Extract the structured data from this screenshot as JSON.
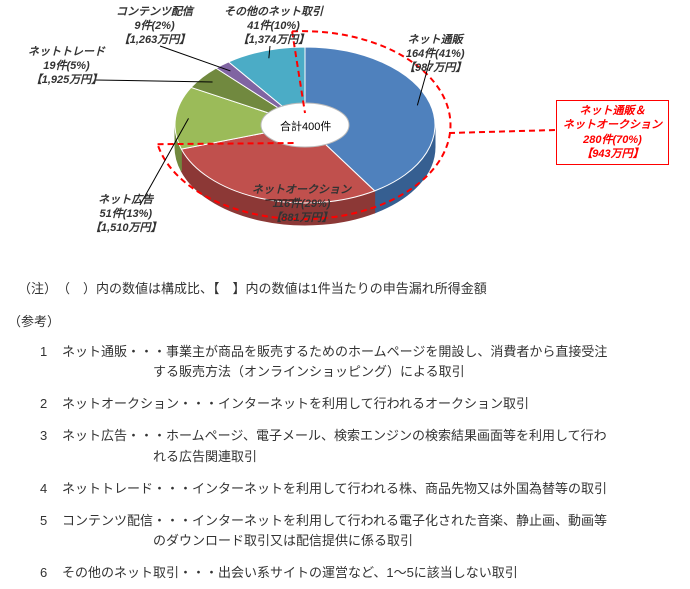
{
  "chart": {
    "type": "pie",
    "center_label": "合計400件",
    "background_color": "#ffffff",
    "slices": [
      {
        "key": "net_sales",
        "label": "ネット通販",
        "count": 164,
        "pct": 41,
        "amount_label": "【987万円】",
        "color": "#4f81bd",
        "side": "#365f91"
      },
      {
        "key": "net_auction",
        "label": "ネットオークション",
        "count": 116,
        "pct": 29,
        "amount_label": "【881万円】",
        "color": "#c0504d",
        "side": "#8c3836"
      },
      {
        "key": "net_ad",
        "label": "ネット広告",
        "count": 51,
        "pct": 13,
        "amount_label": "【1,510万円】",
        "color": "#9bbb59",
        "side": "#71893f"
      },
      {
        "key": "net_trade",
        "label": "ネットトレード",
        "count": 19,
        "pct": 5,
        "amount_label": "【1,925万円】",
        "color": "#71893f",
        "side": "#4f6228"
      },
      {
        "key": "content_dist",
        "label": "コンテンツ配信",
        "count": 9,
        "pct": 2,
        "amount_label": "【1,263万円】",
        "color": "#8064a2",
        "side": "#5c4776"
      },
      {
        "key": "net_other",
        "label": "その他のネット取引",
        "count": 41,
        "pct": 10,
        "amount_label": "【1,374万円】",
        "color": "#4bacc6",
        "side": "#31859c"
      }
    ],
    "combined": {
      "line1": "ネット通販＆",
      "line2": "ネットオークション",
      "line3": "280件(70%)",
      "line4": "【943万円】",
      "border_color": "#ff0000",
      "text_color": "#ff0000"
    },
    "dash": {
      "color": "#ff0000",
      "width": 2,
      "pattern": "6,4"
    }
  },
  "callouts": {
    "net_sales": {
      "line1": "ネット通販",
      "line2": "164件(41%)",
      "line3": "【987万円】"
    },
    "net_auction": {
      "line1": "ネットオークション",
      "line2": "116件(29%)",
      "line3": "【881万円】"
    },
    "net_ad": {
      "line1": "ネット広告",
      "line2": "51件(13%)",
      "line3": "【1,510万円】"
    },
    "net_trade": {
      "line1": "ネットトレード",
      "line2": "19件(5%)",
      "line3": "【1,925万円】"
    },
    "content_dist": {
      "line1": "コンテンツ配信",
      "line2": "9件(2%)",
      "line3": "【1,263万円】"
    },
    "net_other": {
      "line1": "その他のネット取引",
      "line2": "41件(10%)",
      "line3": "【1,374万円】"
    }
  },
  "note": "（注）　（　）内の数値は構成比、【　】内の数値は1件当たりの申告漏れ所得金額",
  "ref_heading": "（参考）",
  "refs": [
    {
      "n": "1",
      "head": "ネット通販・・・事業主が商品を販売するためのホームページを開設し、消費者から直接受注",
      "cont": "する販売方法（オンラインショッピング）による取引"
    },
    {
      "n": "2",
      "head": "ネットオークション・・・インターネットを利用して行われるオークション取引",
      "cont": ""
    },
    {
      "n": "3",
      "head": "ネット広告・・・ホームページ、電子メール、検索エンジンの検索結果画面等を利用して行わ",
      "cont": "れる広告関連取引"
    },
    {
      "n": "4",
      "head": "ネットトレード・・・インターネットを利用して行われる株、商品先物又は外国為替等の取引",
      "cont": ""
    },
    {
      "n": "5",
      "head": "コンテンツ配信・・・インターネットを利用して行われる電子化された音楽、静止画、動画等",
      "cont": "のダウンロード取引又は配信提供に係る取引"
    },
    {
      "n": "6",
      "head": "その他のネット取引・・・出会い系サイトの運営など、1～5に該当しない取引",
      "cont": ""
    }
  ]
}
